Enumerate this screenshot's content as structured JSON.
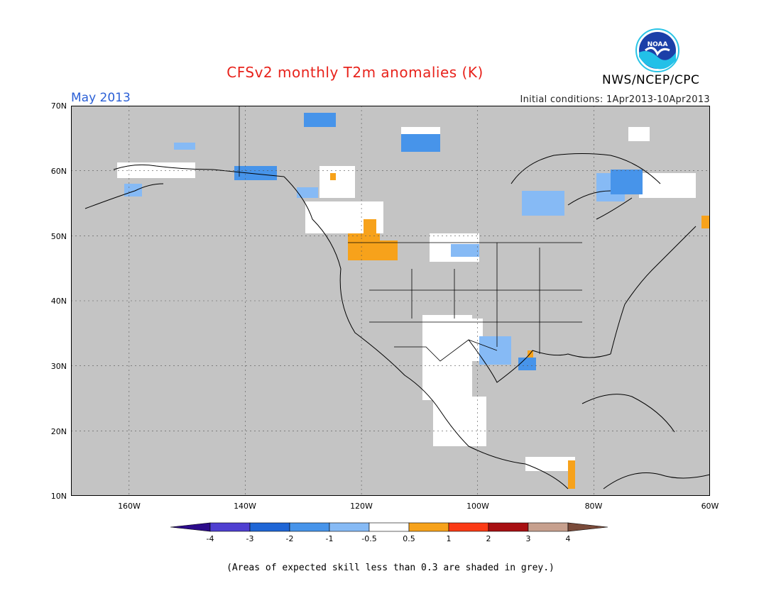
{
  "header": {
    "title": "CFSv2 monthly T2m anomalies (K)",
    "month": "May 2013",
    "initial_conditions": "Initial conditions: 1Apr2013-10Apr2013",
    "agency": "NWS/NCEP/CPC",
    "logo_text": "NOAA"
  },
  "map": {
    "lat_labels": [
      "70N",
      "60N",
      "50N",
      "40N",
      "30N",
      "20N",
      "10N"
    ],
    "lon_labels": [
      "160W",
      "140W",
      "120W",
      "100W",
      "80W",
      "60W"
    ],
    "lon_range": [
      -170,
      -60
    ],
    "lat_range": [
      10,
      70
    ],
    "background": "#c4c4c4"
  },
  "colorbar": {
    "labels": [
      "-4",
      "-3",
      "-2",
      "-1",
      "-0.5",
      "0.5",
      "1",
      "2",
      "3",
      "4"
    ],
    "colors": [
      "#2c0b8a",
      "#4f3fd1",
      "#1f66d6",
      "#4794ea",
      "#86baf5",
      "#ffffff",
      "#f7a21b",
      "#fb3a15",
      "#a80f12",
      "#c7a08e",
      "#7a4b3a"
    ]
  },
  "footnote": "(Areas of expected skill less than 0.3 are shaded in grey.)"
}
